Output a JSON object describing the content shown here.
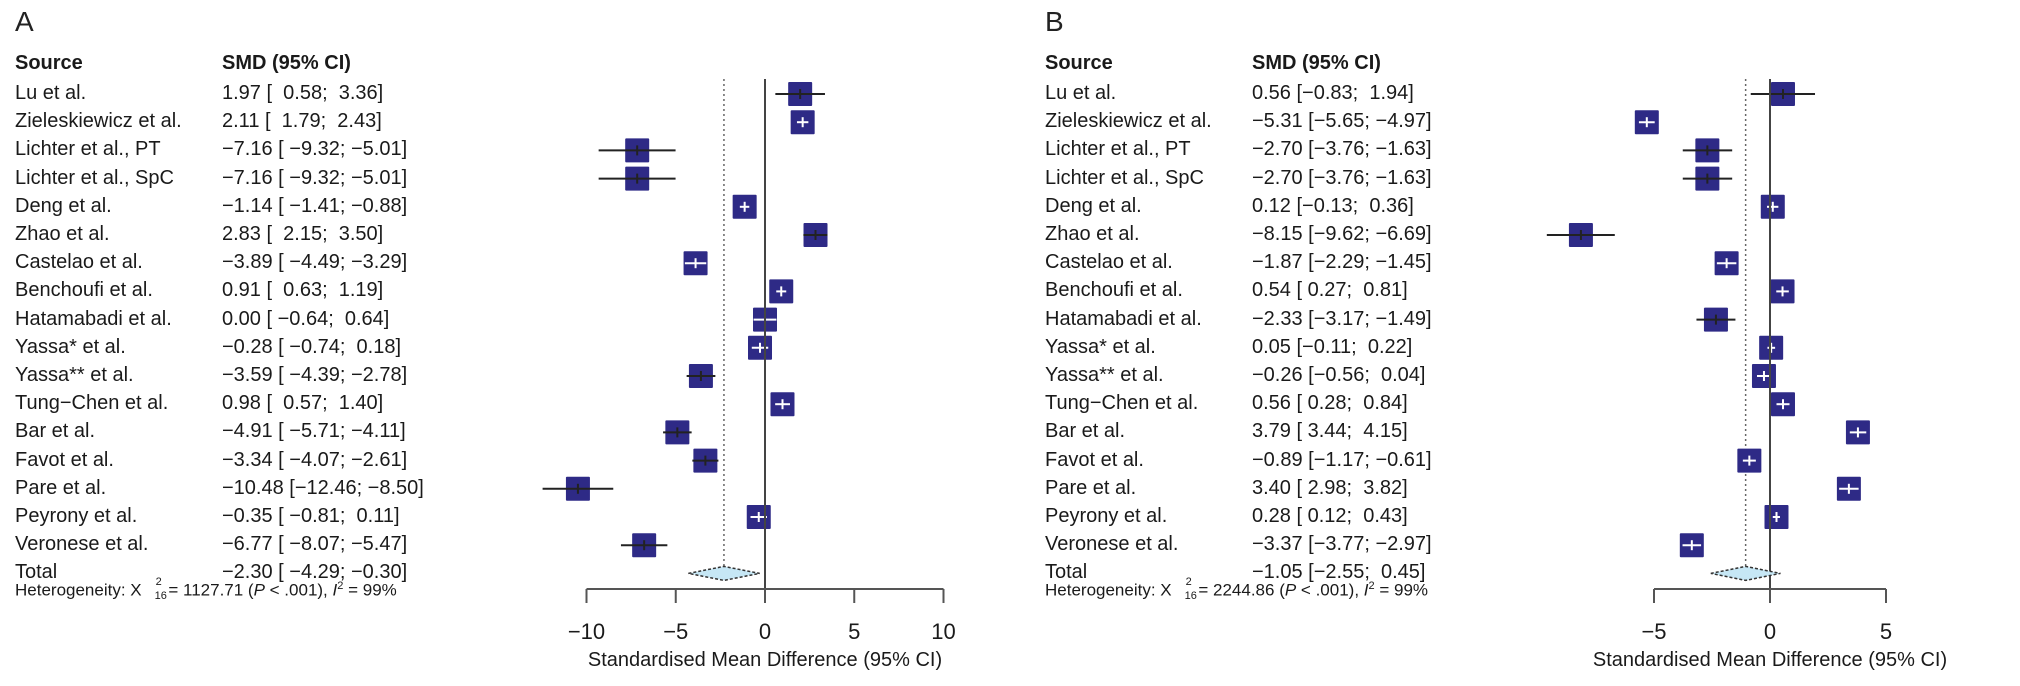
{
  "panels": [
    {
      "label": "A",
      "headers": {
        "source": "Source",
        "smd": "SMD (95% CI)"
      },
      "rows": [
        {
          "source": "Lu et al.",
          "smd_text": "1.97 [  0.58;  3.36]"
        },
        {
          "source": "Zieleskiewicz et al.",
          "smd_text": "2.11 [  1.79;  2.43]"
        },
        {
          "source": "Lichter et al., PT",
          "smd_text": "−7.16 [ −9.32; −5.01]"
        },
        {
          "source": "Lichter et al., SpC",
          "smd_text": "−7.16 [ −9.32; −5.01]"
        },
        {
          "source": "Deng et al.",
          "smd_text": "−1.14 [ −1.41; −0.88]"
        },
        {
          "source": "Zhao et al.",
          "smd_text": "2.83 [  2.15;  3.50]"
        },
        {
          "source": "Castelao et al.",
          "smd_text": "−3.89 [ −4.49; −3.29]"
        },
        {
          "source": "Benchoufi et al.",
          "smd_text": "0.91 [  0.63;  1.19]"
        },
        {
          "source": "Hatamabadi et al.",
          "smd_text": "0.00 [ −0.64;  0.64]"
        },
        {
          "source": "Yassa* et al.",
          "smd_text": "−0.28 [ −0.74;  0.18]"
        },
        {
          "source": "Yassa** et al.",
          "smd_text": "−3.59 [ −4.39; −2.78]"
        },
        {
          "source": "Tung−Chen et al.",
          "smd_text": "0.98 [  0.57;  1.40]"
        },
        {
          "source": "Bar et al.",
          "smd_text": "−4.91 [ −5.71; −4.11]"
        },
        {
          "source": "Favot et al.",
          "smd_text": "−3.34 [ −4.07; −2.61]"
        },
        {
          "source": "Pare et al.",
          "smd_text": "−10.48 [−12.46; −8.50]"
        },
        {
          "source": "Peyrony et al.",
          "smd_text": "−0.35 [ −0.81;  0.11]"
        },
        {
          "source": "Veronese et al.",
          "smd_text": "−6.77 [ −8.07; −5.47]"
        },
        {
          "source": "Total",
          "smd_text": "−2.30 [ −4.29; −0.30]"
        }
      ],
      "heterogeneity": {
        "prefix": "Heterogeneity: X",
        "chi_sup": "2",
        "chi_sub": "16",
        "chi_value": " = 1127.71 (",
        "p_label": "P",
        "p_value": " < .001), ",
        "i_label": "I",
        "i_sup": "2",
        "i_value": " = 99%"
      }
    },
    {
      "label": "B",
      "headers": {
        "source": "Source",
        "smd": "SMD (95% CI)"
      },
      "rows": [
        {
          "source": "Lu et al.",
          "smd_text": "0.56 [−0.83;  1.94]"
        },
        {
          "source": "Zieleskiewicz et al.",
          "smd_text": "−5.31 [−5.65; −4.97]"
        },
        {
          "source": "Lichter et al., PT",
          "smd_text": "−2.70 [−3.76; −1.63]"
        },
        {
          "source": "Lichter et al., SpC",
          "smd_text": "−2.70 [−3.76; −1.63]"
        },
        {
          "source": "Deng et al.",
          "smd_text": "0.12 [−0.13;  0.36]"
        },
        {
          "source": "Zhao et al.",
          "smd_text": "−8.15 [−9.62; −6.69]"
        },
        {
          "source": "Castelao et al.",
          "smd_text": "−1.87 [−2.29; −1.45]"
        },
        {
          "source": "Benchoufi et al.",
          "smd_text": "0.54 [ 0.27;  0.81]"
        },
        {
          "source": "Hatamabadi et al.",
          "smd_text": "−2.33 [−3.17; −1.49]"
        },
        {
          "source": "Yassa* et al.",
          "smd_text": "0.05 [−0.11;  0.22]"
        },
        {
          "source": "Yassa** et al.",
          "smd_text": "−0.26 [−0.56;  0.04]"
        },
        {
          "source": "Tung−Chen et al.",
          "smd_text": "0.56 [ 0.28;  0.84]"
        },
        {
          "source": "Bar et al.",
          "smd_text": "3.79 [ 3.44;  4.15]"
        },
        {
          "source": "Favot et al.",
          "smd_text": "−0.89 [−1.17; −0.61]"
        },
        {
          "source": "Pare et al.",
          "smd_text": "3.40 [ 2.98;  3.82]"
        },
        {
          "source": "Peyrony et al.",
          "smd_text": "0.28 [ 0.12;  0.43]"
        },
        {
          "source": "Veronese et al.",
          "smd_text": "−3.37 [−3.77; −2.97]"
        },
        {
          "source": "Total",
          "smd_text": "−1.05 [−2.55;  0.45]"
        }
      ],
      "heterogeneity": {
        "prefix": "Heterogeneity: X",
        "chi_sup": "2",
        "chi_sub": "16",
        "chi_value": " = 2244.86 (",
        "p_label": "P",
        "p_value": " < .001), ",
        "i_label": "I",
        "i_sup": "2",
        "i_value": " = 99%"
      }
    }
  ],
  "colors": {
    "study_box": "#2e2a86",
    "diamond_fill": "#c6e7f5",
    "axis": "#555555",
    "ci_line": "#222222"
  },
  "chart_data": [
    {
      "type": "forest",
      "panel": "A",
      "title": "",
      "xlabel": "Standardised Mean Difference (95% CI)",
      "xlim": [
        -10,
        10
      ],
      "xticks": [
        -10,
        -5,
        0,
        5,
        10
      ],
      "xtick_labels": [
        "−10",
        "−5",
        "0",
        "5",
        "10"
      ],
      "reference_line": 0,
      "summary_line": -2.3,
      "studies": [
        {
          "name": "Lu et al.",
          "smd": 1.97,
          "lower": 0.58,
          "upper": 3.36
        },
        {
          "name": "Zieleskiewicz et al.",
          "smd": 2.11,
          "lower": 1.79,
          "upper": 2.43
        },
        {
          "name": "Lichter et al., PT",
          "smd": -7.16,
          "lower": -9.32,
          "upper": -5.01
        },
        {
          "name": "Lichter et al., SpC",
          "smd": -7.16,
          "lower": -9.32,
          "upper": -5.01
        },
        {
          "name": "Deng et al.",
          "smd": -1.14,
          "lower": -1.41,
          "upper": -0.88
        },
        {
          "name": "Zhao et al.",
          "smd": 2.83,
          "lower": 2.15,
          "upper": 3.5
        },
        {
          "name": "Castelao et al.",
          "smd": -3.89,
          "lower": -4.49,
          "upper": -3.29
        },
        {
          "name": "Benchoufi et al.",
          "smd": 0.91,
          "lower": 0.63,
          "upper": 1.19
        },
        {
          "name": "Hatamabadi et al.",
          "smd": 0.0,
          "lower": -0.64,
          "upper": 0.64
        },
        {
          "name": "Yassa* et al.",
          "smd": -0.28,
          "lower": -0.74,
          "upper": 0.18
        },
        {
          "name": "Yassa** et al.",
          "smd": -3.59,
          "lower": -4.39,
          "upper": -2.78
        },
        {
          "name": "Tung−Chen et al.",
          "smd": 0.98,
          "lower": 0.57,
          "upper": 1.4
        },
        {
          "name": "Bar et al.",
          "smd": -4.91,
          "lower": -5.71,
          "upper": -4.11
        },
        {
          "name": "Favot et al.",
          "smd": -3.34,
          "lower": -4.07,
          "upper": -2.61
        },
        {
          "name": "Pare et al.",
          "smd": -10.48,
          "lower": -12.46,
          "upper": -8.5
        },
        {
          "name": "Peyrony et al.",
          "smd": -0.35,
          "lower": -0.81,
          "upper": 0.11
        },
        {
          "name": "Veronese et al.",
          "smd": -6.77,
          "lower": -8.07,
          "upper": -5.47
        }
      ],
      "total": {
        "name": "Total",
        "smd": -2.3,
        "lower": -4.29,
        "upper": -0.3
      },
      "heterogeneity": {
        "chi2": 1127.71,
        "df": 16,
        "p": "< .001",
        "i2_percent": 99
      }
    },
    {
      "type": "forest",
      "panel": "B",
      "title": "",
      "xlabel": "Standardised Mean Difference (95% CI)",
      "xlim": [
        -5,
        5
      ],
      "xticks": [
        -5,
        0,
        5
      ],
      "xtick_labels": [
        "−5",
        "0",
        "5"
      ],
      "reference_line": 0,
      "summary_line": -1.05,
      "studies": [
        {
          "name": "Lu et al.",
          "smd": 0.56,
          "lower": -0.83,
          "upper": 1.94
        },
        {
          "name": "Zieleskiewicz et al.",
          "smd": -5.31,
          "lower": -5.65,
          "upper": -4.97
        },
        {
          "name": "Lichter et al., PT",
          "smd": -2.7,
          "lower": -3.76,
          "upper": -1.63
        },
        {
          "name": "Lichter et al., SpC",
          "smd": -2.7,
          "lower": -3.76,
          "upper": -1.63
        },
        {
          "name": "Deng et al.",
          "smd": 0.12,
          "lower": -0.13,
          "upper": 0.36
        },
        {
          "name": "Zhao et al.",
          "smd": -8.15,
          "lower": -9.62,
          "upper": -6.69
        },
        {
          "name": "Castelao et al.",
          "smd": -1.87,
          "lower": -2.29,
          "upper": -1.45
        },
        {
          "name": "Benchoufi et al.",
          "smd": 0.54,
          "lower": 0.27,
          "upper": 0.81
        },
        {
          "name": "Hatamabadi et al.",
          "smd": -2.33,
          "lower": -3.17,
          "upper": -1.49
        },
        {
          "name": "Yassa* et al.",
          "smd": 0.05,
          "lower": -0.11,
          "upper": 0.22
        },
        {
          "name": "Yassa** et al.",
          "smd": -0.26,
          "lower": -0.56,
          "upper": 0.04
        },
        {
          "name": "Tung−Chen et al.",
          "smd": 0.56,
          "lower": 0.28,
          "upper": 0.84
        },
        {
          "name": "Bar et al.",
          "smd": 3.79,
          "lower": 3.44,
          "upper": 4.15
        },
        {
          "name": "Favot et al.",
          "smd": -0.89,
          "lower": -1.17,
          "upper": -0.61
        },
        {
          "name": "Pare et al.",
          "smd": 3.4,
          "lower": 2.98,
          "upper": 3.82
        },
        {
          "name": "Peyrony et al.",
          "smd": 0.28,
          "lower": 0.12,
          "upper": 0.43
        },
        {
          "name": "Veronese et al.",
          "smd": -3.37,
          "lower": -3.77,
          "upper": -2.97
        }
      ],
      "total": {
        "name": "Total",
        "smd": -1.05,
        "lower": -2.55,
        "upper": 0.45
      },
      "heterogeneity": {
        "chi2": 2244.86,
        "df": 16,
        "p": "< .001",
        "i2_percent": 99
      }
    }
  ]
}
